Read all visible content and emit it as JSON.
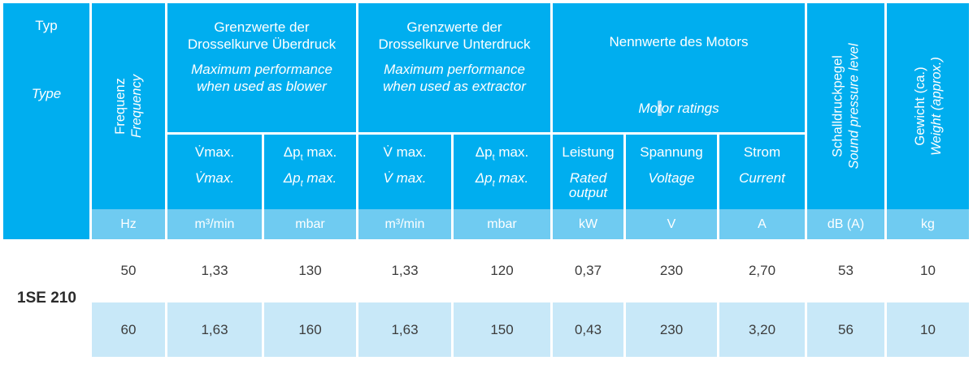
{
  "table": {
    "typ": {
      "de": "Typ",
      "en": "Type"
    },
    "frequency": {
      "de": "Frequenz",
      "en": "Frequency"
    },
    "groups": {
      "blower": {
        "de": "Grenzwerte der Drosselkurve Überdruck",
        "en": "Maximum performance when used as blower"
      },
      "extractor": {
        "de": "Grenzwerte der Drosselkurve Unterdruck",
        "en": "Maximum performance when used as extractor"
      },
      "motor": {
        "de": "Nennwerte des Motors",
        "en_pre": "Mo",
        "en_highlighted": "t",
        "en_post": "or ratings"
      }
    },
    "subheaders": {
      "vmax_blower": {
        "de": "V̇max.",
        "en": "V̇max."
      },
      "dpt_blower": {
        "pre": "Δp",
        "sub": "t",
        "post": " max."
      },
      "vmax_extractor": {
        "de": "V̇ max.",
        "en": "V̇ max."
      },
      "dpt_extractor": {
        "pre": "Δp",
        "sub": "t",
        "post": " max."
      },
      "rated_output": {
        "de": "Leistung",
        "en": "Rated output"
      },
      "voltage": {
        "de": "Spannung",
        "en": "Voltage"
      },
      "current": {
        "de": "Strom",
        "en": "Current"
      }
    },
    "sound_pressure": {
      "de": "Schalldruckpegel",
      "en": "Sound pressure level"
    },
    "weight": {
      "de": "Gewicht (ca.)",
      "en": "Weight (approx.)"
    },
    "units": [
      "Hz",
      "m³/min",
      "mbar",
      "m³/min",
      "mbar",
      "kW",
      "V",
      "A",
      "dB (A)",
      "kg"
    ],
    "type_label": "1SE 210",
    "rows": [
      {
        "frequency": "50",
        "values": [
          "1,33",
          "130",
          "1,33",
          "120",
          "0,37",
          "230",
          "2,70",
          "53",
          "10"
        ]
      },
      {
        "frequency": "60",
        "values": [
          "1,63",
          "160",
          "1,63",
          "150",
          "0,43",
          "230",
          "3,20",
          "56",
          "10"
        ]
      }
    ]
  },
  "colors": {
    "header_blue": "#00AEEF",
    "unit_row_blue": "#6FCBF1",
    "data_row_blue": "#C8E8F8",
    "header_text": "#FFFFFF",
    "data_text": "#3C3C3C"
  },
  "chart_data": {
    "type": "table",
    "columns": [
      "Typ / Type",
      "Frequenz / Frequency (Hz)",
      "V̇max blower (m³/min)",
      "Δpt max blower (mbar)",
      "V̇max extractor (m³/min)",
      "Δpt max extractor (mbar)",
      "Leistung / Rated output (kW)",
      "Spannung / Voltage (V)",
      "Strom / Current (A)",
      "Schalldruckpegel / Sound pressure level (dB (A))",
      "Gewicht / Weight (kg)"
    ],
    "rows": [
      [
        "1SE 210",
        50,
        1.33,
        130,
        1.33,
        120,
        0.37,
        230,
        2.7,
        53,
        10
      ],
      [
        "1SE 210",
        60,
        1.63,
        160,
        1.63,
        150,
        0.43,
        230,
        3.2,
        56,
        10
      ]
    ]
  }
}
